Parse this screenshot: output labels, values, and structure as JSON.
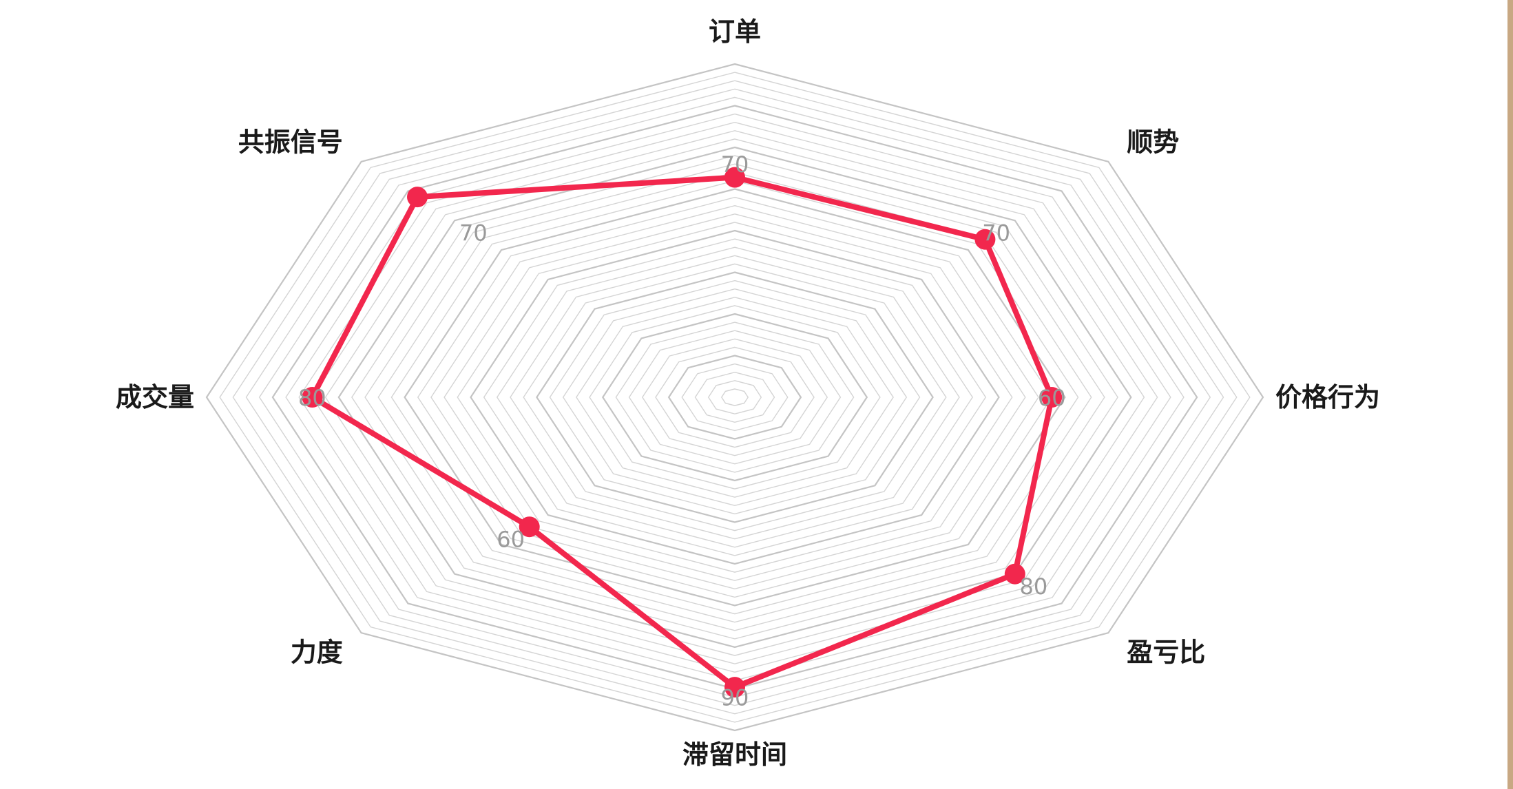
{
  "chart_data": {
    "type": "radar",
    "title": "",
    "axes": [
      "订单",
      "顺势",
      "价格行为",
      "盈亏比",
      "滞留时间",
      "力度",
      "成交量",
      "共振信号"
    ],
    "values": [
      66,
      67,
      60,
      75,
      87,
      55,
      80,
      85
    ],
    "max_values": [
      100,
      100,
      100,
      100,
      100,
      100,
      100,
      100
    ],
    "tick_labels": [
      {
        "axis": "订单",
        "text": "70"
      },
      {
        "axis": "顺势",
        "text": "70"
      },
      {
        "axis": "价格行为",
        "text": "60"
      },
      {
        "axis": "盈亏比",
        "text": "80"
      },
      {
        "axis": "滞留时间",
        "text": "90"
      },
      {
        "axis": "力度",
        "text": "60"
      },
      {
        "axis": "成交量",
        "text": "80"
      },
      {
        "axis": "共振信号",
        "text": "70"
      }
    ],
    "grid_rings": 40,
    "grid": true,
    "legend": "none",
    "colors": {
      "series": "#f2274d",
      "grid": "#d4d4d4",
      "grid_strong": "#c4c4c4",
      "axis_label": "#1a1a1a",
      "tick_label": "#9a9a9a",
      "right_border": "#c8a883"
    }
  }
}
